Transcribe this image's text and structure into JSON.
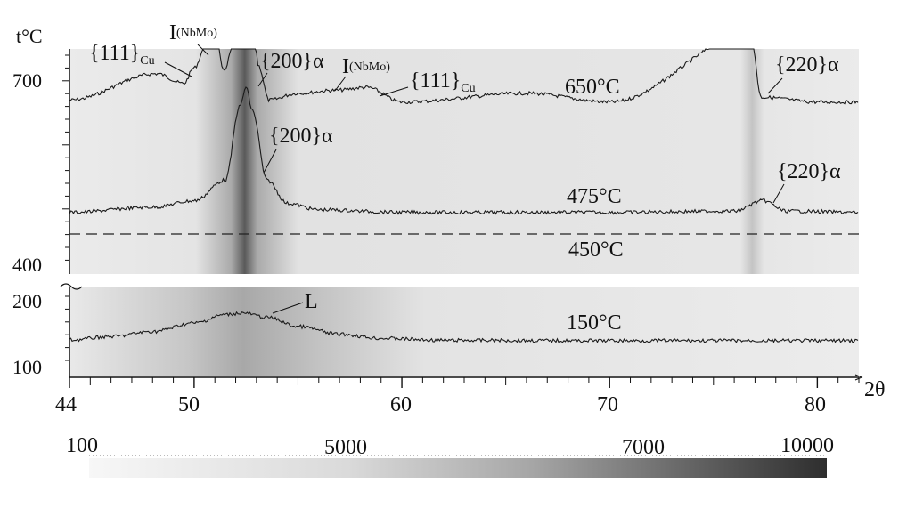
{
  "chart_data": {
    "type": "line",
    "title": "",
    "xlabel": "2θ",
    "ylabel": "t°C",
    "xlim": [
      44,
      82
    ],
    "x_ticks": [
      "44",
      "50",
      "60",
      "70",
      "80"
    ],
    "y_ticks_upper": [
      "700",
      "400"
    ],
    "y_ticks_lower": [
      "200",
      "100"
    ],
    "grid": false,
    "color_scale": {
      "ticks": [
        "100",
        "5000",
        "7000",
        "10000"
      ],
      "colors": [
        "#f7f7f7",
        "#2e2e2e"
      ]
    },
    "series": [
      {
        "name": "650°C",
        "x": [
          44,
          48.2,
          49.5,
          50.0,
          50.6,
          51.0,
          51.4,
          52.3,
          52.8,
          53.1,
          53.6,
          55.0,
          56.8,
          58.3,
          60,
          66.0,
          70,
          76.8,
          77.3,
          80,
          82
        ],
        "y": [
          0.05,
          0.32,
          0.22,
          0.38,
          0.62,
          0.82,
          0.35,
          1.0,
          1.0,
          0.4,
          0.05,
          0.12,
          0.15,
          0.18,
          0.03,
          0.12,
          0.03,
          0.72,
          0.08,
          0.03,
          0.03
        ]
      },
      {
        "name": "475°C",
        "x": [
          44,
          48,
          50,
          51.5,
          52.2,
          52.5,
          52.8,
          53.5,
          54.5,
          56,
          60,
          70,
          76,
          77.4,
          78.5,
          82
        ],
        "y": [
          0.03,
          0.07,
          0.12,
          0.28,
          0.85,
          1.0,
          0.82,
          0.28,
          0.1,
          0.05,
          0.03,
          0.03,
          0.04,
          0.12,
          0.04,
          0.03
        ]
      },
      {
        "name": "150°C",
        "x": [
          44,
          46,
          48,
          50,
          51.5,
          52.3,
          53.5,
          55,
          57,
          59,
          62,
          70,
          82
        ],
        "y": [
          0.05,
          0.15,
          0.3,
          0.55,
          0.8,
          0.85,
          0.72,
          0.45,
          0.22,
          0.1,
          0.04,
          0.03,
          0.03
        ]
      }
    ],
    "temperature_labels": [
      "650°C",
      "475°C",
      "450°C",
      "150°C"
    ],
    "annotations": {
      "cu111_a": "{111}",
      "cu111_a_sub": "Cu",
      "nbmo_a": "I",
      "nbmo_a_sub": "(NbMo)",
      "a200_top": "{200}α",
      "nbmo_b": "I",
      "nbmo_b_sub": "(NbMo)",
      "cu111_b": "{111}",
      "cu111_b_sub": "Cu",
      "a220_top": "{220}α",
      "a200_mid": "{200}α",
      "a220_mid": "{220}α",
      "liquid": "L"
    }
  }
}
